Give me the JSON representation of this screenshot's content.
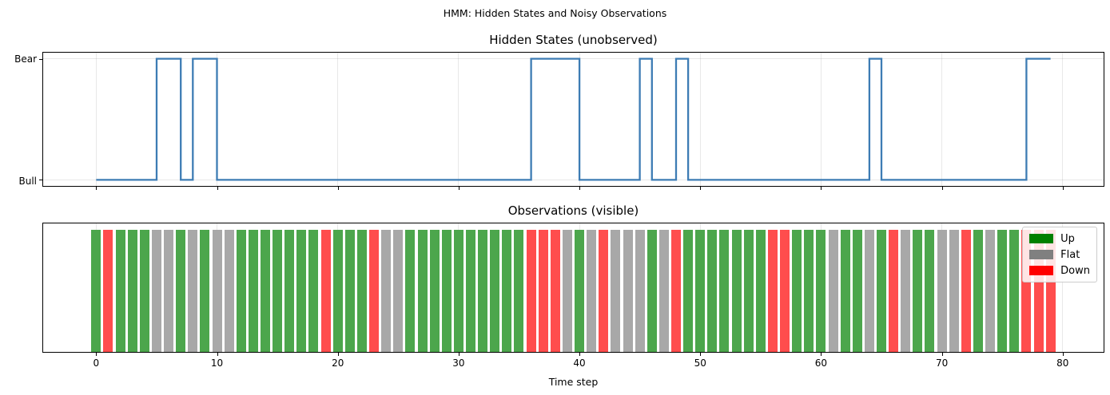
{
  "figure": {
    "suptitle": "HMM: Hidden States and Noisy Observations",
    "background": "#ffffff"
  },
  "chart_data": [
    {
      "type": "line",
      "step_style": "post",
      "title": "Hidden States (unobserved)",
      "ytick_labels": [
        "Bull",
        "Bear"
      ],
      "xlim": [
        -4.39,
        83.39
      ],
      "ylim": [
        -0.05,
        1.05
      ],
      "grid": true,
      "line_color": "#3d7cb4",
      "n_steps": 80,
      "states": [
        "Bull",
        "Bull",
        "Bull",
        "Bull",
        "Bull",
        "Bear",
        "Bear",
        "Bull",
        "Bear",
        "Bear",
        "Bull",
        "Bull",
        "Bull",
        "Bull",
        "Bull",
        "Bull",
        "Bull",
        "Bull",
        "Bull",
        "Bull",
        "Bull",
        "Bull",
        "Bull",
        "Bull",
        "Bull",
        "Bull",
        "Bull",
        "Bull",
        "Bull",
        "Bull",
        "Bull",
        "Bull",
        "Bull",
        "Bull",
        "Bull",
        "Bull",
        "Bear",
        "Bear",
        "Bear",
        "Bear",
        "Bull",
        "Bull",
        "Bull",
        "Bull",
        "Bull",
        "Bear",
        "Bull",
        "Bull",
        "Bear",
        "Bull",
        "Bull",
        "Bull",
        "Bull",
        "Bull",
        "Bull",
        "Bull",
        "Bull",
        "Bull",
        "Bull",
        "Bull",
        "Bull",
        "Bull",
        "Bull",
        "Bull",
        "Bear",
        "Bull",
        "Bull",
        "Bull",
        "Bull",
        "Bull",
        "Bull",
        "Bull",
        "Bull",
        "Bull",
        "Bull",
        "Bull",
        "Bull",
        "Bear",
        "Bear",
        "Bear"
      ]
    },
    {
      "type": "bar",
      "title": "Observations (visible)",
      "xlabel": "Time step",
      "xlim": [
        -4.39,
        83.39
      ],
      "ylim": [
        0,
        1.05
      ],
      "bar_width": 0.8,
      "bar_value": 1,
      "grid": true,
      "xticks": [
        0,
        10,
        20,
        30,
        40,
        50,
        60,
        70,
        80
      ],
      "xtick_labels": [
        "0",
        "10",
        "20",
        "30",
        "40",
        "50",
        "60",
        "70",
        "80"
      ],
      "legend_position": "upper right",
      "bar_colors": {
        "Up": "#4ca64c",
        "Flat": "#a8a8a8",
        "Down": "#ff4d4d"
      },
      "legend": [
        {
          "label": "Up",
          "color": "#008000"
        },
        {
          "label": "Flat",
          "color": "#808080"
        },
        {
          "label": "Down",
          "color": "#ff0000"
        }
      ],
      "n_steps": 80,
      "observations": [
        "Up",
        "Down",
        "Up",
        "Up",
        "Up",
        "Flat",
        "Flat",
        "Up",
        "Flat",
        "Up",
        "Flat",
        "Flat",
        "Up",
        "Up",
        "Up",
        "Up",
        "Up",
        "Up",
        "Up",
        "Down",
        "Up",
        "Up",
        "Up",
        "Down",
        "Flat",
        "Flat",
        "Up",
        "Up",
        "Up",
        "Up",
        "Up",
        "Up",
        "Up",
        "Up",
        "Up",
        "Up",
        "Down",
        "Down",
        "Down",
        "Flat",
        "Up",
        "Flat",
        "Down",
        "Flat",
        "Flat",
        "Flat",
        "Up",
        "Flat",
        "Down",
        "Up",
        "Up",
        "Up",
        "Up",
        "Up",
        "Up",
        "Up",
        "Down",
        "Down",
        "Up",
        "Up",
        "Up",
        "Flat",
        "Up",
        "Up",
        "Flat",
        "Up",
        "Down",
        "Flat",
        "Up",
        "Up",
        "Flat",
        "Flat",
        "Down",
        "Up",
        "Flat",
        "Up",
        "Up",
        "Down",
        "Down",
        "Down"
      ]
    }
  ]
}
